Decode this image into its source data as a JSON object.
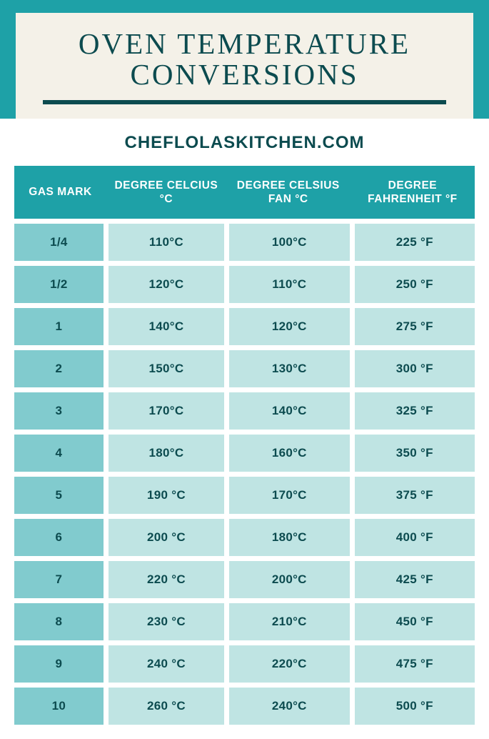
{
  "title_line1": "OVEN TEMPERATURE",
  "title_line2": "CONVERSIONS",
  "site_url": "CHEFLOLASKITCHEN.COM",
  "colors": {
    "brand_teal": "#1ea1a7",
    "dark_teal": "#0c4b4f",
    "card_bg": "#f4f1e8",
    "gas_cell": "#81cbce",
    "val_cell": "#bfe4e3",
    "page_bg": "#ffffff"
  },
  "table": {
    "headers": {
      "gas": "GAS MARK",
      "celsius": "DEGREE CELCIUS  °C",
      "fan": "DEGREE CELSIUS FAN °C",
      "fahrenheit": "DEGREE FAHRENHEIT °F"
    },
    "rows": [
      {
        "gas": "1/4",
        "c": "110°C",
        "fan": "100°C",
        "f": "225 °F"
      },
      {
        "gas": "1/2",
        "c": "120°C",
        "fan": "110°C",
        "f": "250 °F"
      },
      {
        "gas": "1",
        "c": "140°C",
        "fan": "120°C",
        "f": "275 °F"
      },
      {
        "gas": "2",
        "c": "150°C",
        "fan": "130°C",
        "f": "300 °F"
      },
      {
        "gas": "3",
        "c": "170°C",
        "fan": "140°C",
        "f": "325 °F"
      },
      {
        "gas": "4",
        "c": "180°C",
        "fan": "160°C",
        "f": "350 °F"
      },
      {
        "gas": "5",
        "c": "190 °C",
        "fan": "170°C",
        "f": "375 °F"
      },
      {
        "gas": "6",
        "c": "200 °C",
        "fan": "180°C",
        "f": "400 °F"
      },
      {
        "gas": "7",
        "c": "220 °C",
        "fan": "200°C",
        "f": "425 °F"
      },
      {
        "gas": "8",
        "c": "230 °C",
        "fan": "210°C",
        "f": "450 °F"
      },
      {
        "gas": "9",
        "c": "240 °C",
        "fan": "220°C",
        "f": "475 °F"
      },
      {
        "gas": "10",
        "c": "260 °C",
        "fan": "240°C",
        "f": "500 °F"
      }
    ]
  }
}
